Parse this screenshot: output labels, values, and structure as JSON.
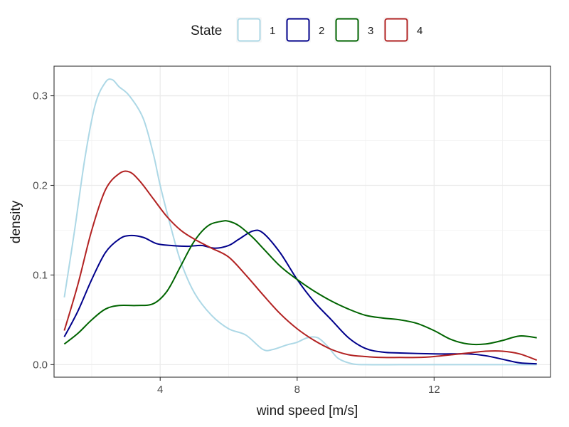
{
  "chart_data": {
    "type": "line",
    "title": "",
    "xlabel": "wind speed [m/s]",
    "ylabel": "density",
    "xlim": [
      0.9,
      15.4
    ],
    "ylim": [
      -0.014,
      0.333
    ],
    "xticks": [
      4,
      8,
      12
    ],
    "xtick_labels": [
      "4",
      "8",
      "12"
    ],
    "xminor": [
      2,
      6,
      10,
      14
    ],
    "yticks": [
      0.0,
      0.1,
      0.2,
      0.3
    ],
    "ytick_labels": [
      "0.0",
      "0.1",
      "0.2",
      "0.3"
    ],
    "yminor": [
      0.05,
      0.15,
      0.25
    ],
    "grid": true,
    "legend": {
      "title": "State",
      "position": "top"
    },
    "series": [
      {
        "name": "1",
        "color": "#add8e6",
        "x": [
          1.2,
          1.5,
          1.8,
          2.1,
          2.4,
          2.6,
          2.8,
          3.1,
          3.5,
          3.8,
          4.0,
          4.3,
          4.6,
          5.0,
          5.5,
          6.0,
          6.5,
          7.0,
          7.3,
          7.7,
          8.0,
          8.3,
          8.6,
          8.9,
          9.2,
          9.6,
          10.0,
          11.0,
          12.0,
          13.0,
          14.0,
          15.0
        ],
        "values": [
          0.075,
          0.15,
          0.23,
          0.29,
          0.315,
          0.318,
          0.31,
          0.3,
          0.275,
          0.235,
          0.2,
          0.155,
          0.115,
          0.08,
          0.055,
          0.04,
          0.033,
          0.017,
          0.017,
          0.022,
          0.025,
          0.03,
          0.03,
          0.02,
          0.007,
          0.001,
          0.0,
          0.0,
          0.0,
          0.0,
          0.0,
          0.0
        ]
      },
      {
        "name": "2",
        "color": "#00008b",
        "x": [
          1.2,
          1.6,
          2.0,
          2.4,
          2.8,
          3.1,
          3.5,
          3.9,
          4.3,
          4.8,
          5.2,
          5.6,
          6.0,
          6.3,
          6.7,
          7.0,
          7.5,
          8.0,
          8.5,
          9.0,
          9.5,
          10.0,
          10.5,
          11.0,
          12.0,
          12.5,
          13.0,
          13.5,
          14.0,
          14.5,
          15.0
        ],
        "values": [
          0.031,
          0.06,
          0.095,
          0.125,
          0.14,
          0.144,
          0.142,
          0.135,
          0.133,
          0.132,
          0.133,
          0.13,
          0.133,
          0.14,
          0.149,
          0.147,
          0.125,
          0.095,
          0.07,
          0.05,
          0.03,
          0.018,
          0.014,
          0.013,
          0.012,
          0.012,
          0.012,
          0.01,
          0.006,
          0.002,
          0.001
        ]
      },
      {
        "name": "3",
        "color": "#006400",
        "x": [
          1.2,
          1.6,
          2.0,
          2.4,
          2.8,
          3.3,
          3.8,
          4.2,
          4.6,
          5.0,
          5.4,
          5.8,
          6.0,
          6.3,
          6.7,
          7.0,
          7.5,
          8.0,
          8.5,
          9.0,
          9.5,
          10.0,
          10.5,
          11.0,
          11.5,
          12.0,
          12.5,
          13.0,
          13.5,
          14.0,
          14.5,
          15.0
        ],
        "values": [
          0.023,
          0.035,
          0.05,
          0.062,
          0.066,
          0.066,
          0.068,
          0.082,
          0.11,
          0.138,
          0.155,
          0.16,
          0.16,
          0.155,
          0.142,
          0.13,
          0.11,
          0.095,
          0.082,
          0.071,
          0.062,
          0.055,
          0.052,
          0.05,
          0.046,
          0.038,
          0.028,
          0.023,
          0.023,
          0.027,
          0.032,
          0.03
        ]
      },
      {
        "name": "4",
        "color": "#b22222",
        "x": [
          1.2,
          1.6,
          2.0,
          2.4,
          2.8,
          3.1,
          3.4,
          3.8,
          4.2,
          4.6,
          5.0,
          5.5,
          6.0,
          6.5,
          7.0,
          7.5,
          8.0,
          8.5,
          9.0,
          9.5,
          10.0,
          10.5,
          11.0,
          11.5,
          12.0,
          12.5,
          13.0,
          13.5,
          14.0,
          14.5,
          15.0
        ],
        "values": [
          0.038,
          0.09,
          0.15,
          0.195,
          0.213,
          0.215,
          0.205,
          0.185,
          0.165,
          0.15,
          0.14,
          0.13,
          0.12,
          0.1,
          0.078,
          0.057,
          0.04,
          0.027,
          0.017,
          0.011,
          0.009,
          0.008,
          0.008,
          0.008,
          0.009,
          0.011,
          0.013,
          0.015,
          0.015,
          0.012,
          0.005
        ]
      }
    ]
  }
}
